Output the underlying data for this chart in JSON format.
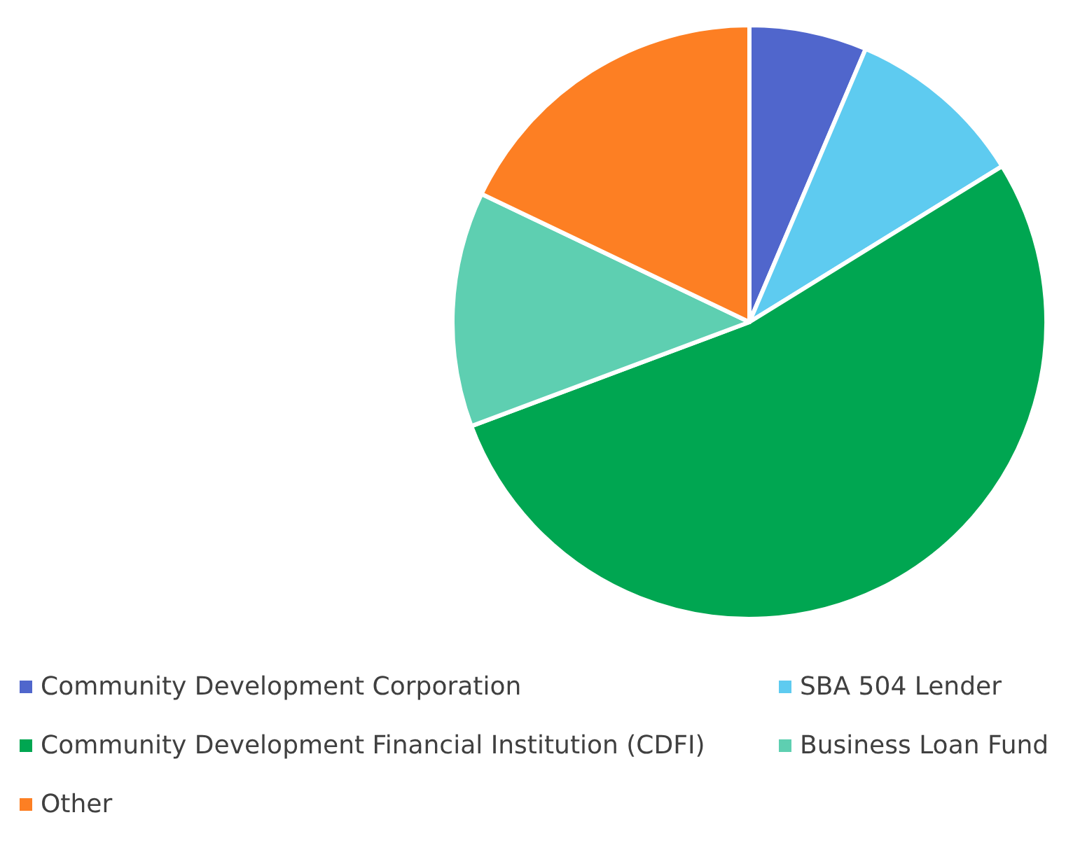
{
  "chart_data": {
    "type": "pie",
    "categories": [
      "Community Development Corporation",
      "SBA 504 Lender",
      "Community Development Financial Institution (CDFI)",
      "Business Loan Fund",
      "Other"
    ],
    "values": [
      6.4,
      9.8,
      53.1,
      12.8,
      17.9
    ],
    "colors": [
      "#5066cc",
      "#5ecbf0",
      "#00a651",
      "#5ecfb1",
      "#fd7f23"
    ],
    "legend": "bottom"
  }
}
